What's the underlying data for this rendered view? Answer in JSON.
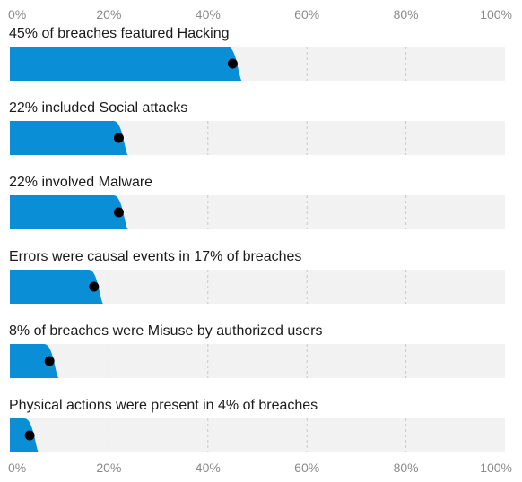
{
  "chart_data": {
    "type": "bar",
    "orientation": "horizontal",
    "title": "",
    "xlabel": "",
    "ylabel": "",
    "xlim": [
      0,
      100
    ],
    "ticks": [
      "0%",
      "20%",
      "40%",
      "60%",
      "80%",
      "100%"
    ],
    "tick_values": [
      0,
      20,
      40,
      60,
      80,
      100
    ],
    "grid": true,
    "categories": [
      "45% of breaches featured Hacking",
      "22% included Social attacks",
      "22% involved Malware",
      "Errors were causal events in 17% of breaches",
      "8% of breaches were Misuse by authorized users",
      "Physical actions were present in 4% of breaches"
    ],
    "values": [
      45,
      22,
      22,
      17,
      8,
      4
    ],
    "colors": {
      "bar": "#0a8fd6",
      "track": "#f2f2f2",
      "grid": "#c8c8c8",
      "point": "#000000"
    }
  }
}
